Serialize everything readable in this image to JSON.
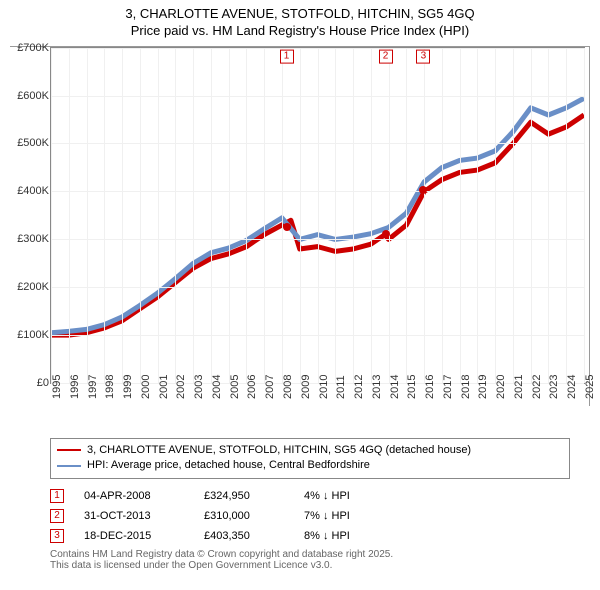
{
  "title": {
    "line1": "3, CHARLOTTE AVENUE, STOTFOLD, HITCHIN, SG5 4GQ",
    "line2": "Price paid vs. HM Land Registry's House Price Index (HPI)"
  },
  "chart": {
    "type": "line",
    "background_color": "#ffffff",
    "grid_color": "#f0f0f0",
    "border_color": "#888888",
    "xlim": [
      1995,
      2025
    ],
    "ylim": [
      0,
      700000
    ],
    "ytick_step": 100000,
    "ytick_labels": [
      "£0",
      "£100K",
      "£200K",
      "£300K",
      "£400K",
      "£500K",
      "£600K",
      "£700K"
    ],
    "xticks": [
      1995,
      1996,
      1997,
      1998,
      1999,
      2000,
      2001,
      2002,
      2003,
      2004,
      2005,
      2006,
      2007,
      2008,
      2009,
      2010,
      2011,
      2012,
      2013,
      2014,
      2015,
      2016,
      2017,
      2018,
      2019,
      2020,
      2021,
      2022,
      2023,
      2024,
      2025
    ],
    "series": [
      {
        "name": "price_paid",
        "color": "#cc0000",
        "width": 2,
        "points": [
          [
            1995,
            100000
          ],
          [
            1996,
            100000
          ],
          [
            1997,
            105000
          ],
          [
            1998,
            115000
          ],
          [
            1999,
            130000
          ],
          [
            2000,
            155000
          ],
          [
            2001,
            180000
          ],
          [
            2002,
            210000
          ],
          [
            2003,
            240000
          ],
          [
            2004,
            260000
          ],
          [
            2005,
            270000
          ],
          [
            2006,
            285000
          ],
          [
            2007,
            310000
          ],
          [
            2008,
            330000
          ],
          [
            2008.5,
            340000
          ],
          [
            2009,
            280000
          ],
          [
            2010,
            285000
          ],
          [
            2011,
            275000
          ],
          [
            2012,
            280000
          ],
          [
            2013,
            290000
          ],
          [
            2013.8,
            310000
          ],
          [
            2014,
            300000
          ],
          [
            2015,
            330000
          ],
          [
            2016,
            400000
          ],
          [
            2017,
            425000
          ],
          [
            2018,
            440000
          ],
          [
            2019,
            445000
          ],
          [
            2020,
            460000
          ],
          [
            2021,
            500000
          ],
          [
            2022,
            545000
          ],
          [
            2023,
            520000
          ],
          [
            2024,
            535000
          ],
          [
            2025,
            560000
          ]
        ]
      },
      {
        "name": "hpi",
        "color": "#6a8fc7",
        "width": 2,
        "points": [
          [
            1995,
            105000
          ],
          [
            1996,
            108000
          ],
          [
            1997,
            112000
          ],
          [
            1998,
            122000
          ],
          [
            1999,
            138000
          ],
          [
            2000,
            162000
          ],
          [
            2001,
            188000
          ],
          [
            2002,
            218000
          ],
          [
            2003,
            250000
          ],
          [
            2004,
            272000
          ],
          [
            2005,
            282000
          ],
          [
            2006,
            298000
          ],
          [
            2007,
            322000
          ],
          [
            2008,
            345000
          ],
          [
            2009,
            300000
          ],
          [
            2010,
            310000
          ],
          [
            2011,
            300000
          ],
          [
            2012,
            305000
          ],
          [
            2013,
            312000
          ],
          [
            2014,
            325000
          ],
          [
            2015,
            355000
          ],
          [
            2016,
            420000
          ],
          [
            2017,
            450000
          ],
          [
            2018,
            465000
          ],
          [
            2019,
            470000
          ],
          [
            2020,
            485000
          ],
          [
            2021,
            525000
          ],
          [
            2022,
            575000
          ],
          [
            2023,
            560000
          ],
          [
            2024,
            575000
          ],
          [
            2025,
            595000
          ]
        ]
      }
    ],
    "markers": [
      {
        "id": "1",
        "x": 2008.26,
        "y": 324950
      },
      {
        "id": "2",
        "x": 2013.83,
        "y": 310000
      },
      {
        "id": "3",
        "x": 2015.96,
        "y": 403350
      }
    ],
    "title_fontsize": 13,
    "tick_fontsize": 11
  },
  "legend": {
    "items": [
      {
        "color": "#cc0000",
        "label": "3, CHARLOTTE AVENUE, STOTFOLD, HITCHIN, SG5 4GQ (detached house)"
      },
      {
        "color": "#6a8fc7",
        "label": "HPI: Average price, detached house, Central Bedfordshire"
      }
    ]
  },
  "transactions": [
    {
      "id": "1",
      "date": "04-APR-2008",
      "price": "£324,950",
      "diff": "4% ↓ HPI"
    },
    {
      "id": "2",
      "date": "31-OCT-2013",
      "price": "£310,000",
      "diff": "7% ↓ HPI"
    },
    {
      "id": "3",
      "date": "18-DEC-2015",
      "price": "£403,350",
      "diff": "8% ↓ HPI"
    }
  ],
  "footnote": {
    "line1": "Contains HM Land Registry data © Crown copyright and database right 2025.",
    "line2": "This data is licensed under the Open Government Licence v3.0."
  }
}
